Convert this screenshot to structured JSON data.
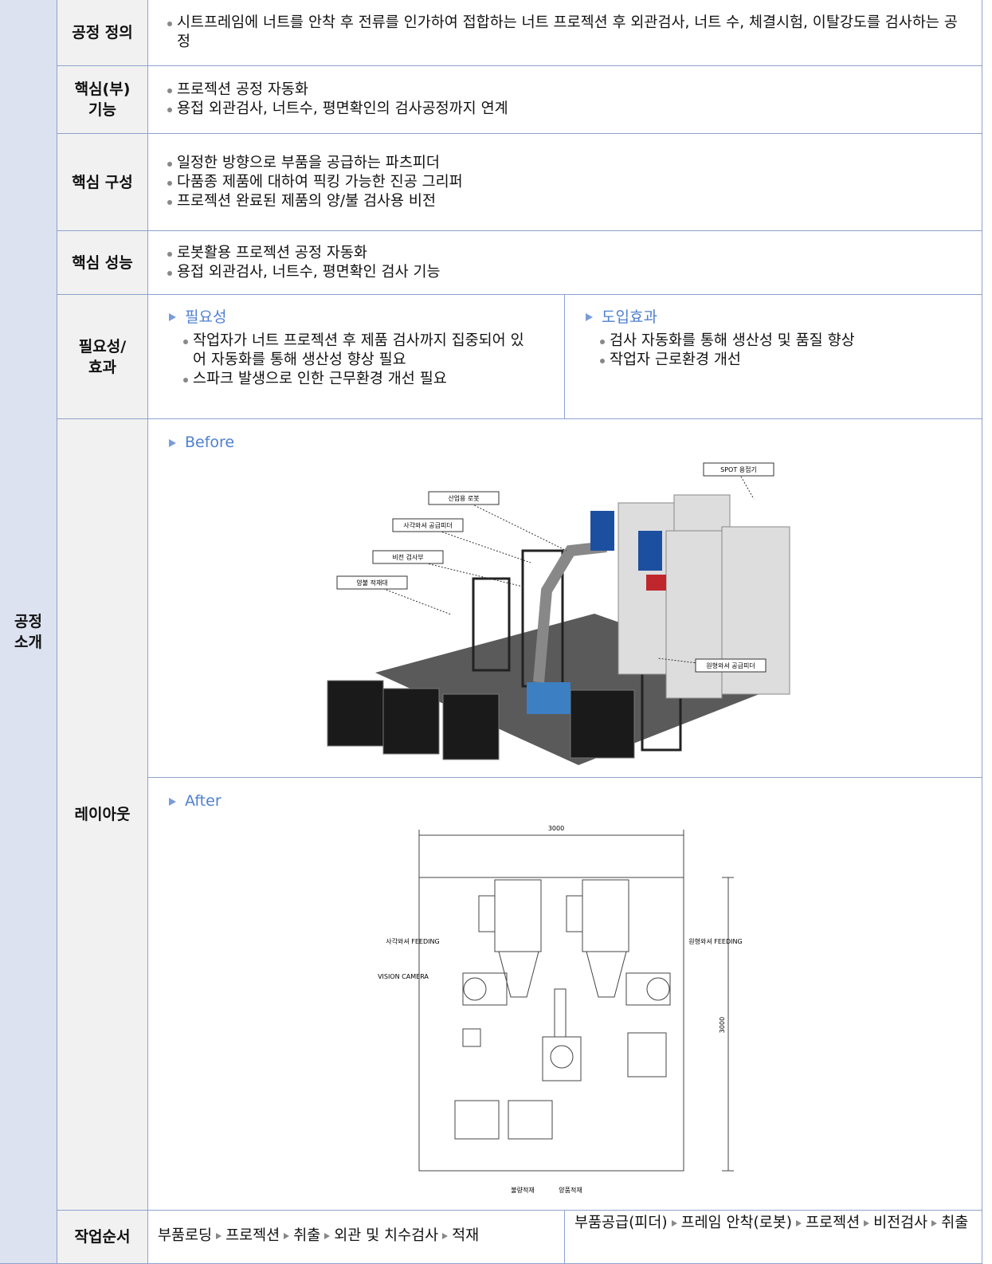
{
  "section": [
    "공정",
    "소개"
  ],
  "rows": [
    {
      "label": [
        "공정 정의"
      ],
      "items": [
        "시트프레임에 너트를 안착 후 전류를 인가하여 접합하는 너트 프로젝션 후 외관검사, 너트 수, 체결시험, 이탈강도를 검사하는 공정"
      ]
    },
    {
      "label": [
        "핵심(부)",
        "기능"
      ],
      "items": [
        "프로젝션 공정 자동화",
        "용접 외관검사, 너트수, 평면확인의 검사공정까지 연계"
      ]
    },
    {
      "label": [
        "핵심 구성"
      ],
      "items": [
        "일정한 방향으로 부품을 공급하는 파츠피더",
        "다품종 제품에 대하여 픽킹 가능한 진공 그리퍼",
        "프로젝션 완료된 제품의 양/불 검사용 비전"
      ]
    },
    {
      "label": [
        "핵심 성능"
      ],
      "items": [
        "로봇활용 프로젝션 공정 자동화",
        "용접 외관검사, 너트수, 평면확인 검사 기능"
      ]
    }
  ],
  "effect": {
    "label": [
      "필요성/",
      "효과"
    ],
    "need": {
      "heading": "필요성",
      "items": [
        "작업자가 너트 프로젝션 후 제품 검사까지 집중되어 있어 자동화를 통해 생산성 향상 필요",
        "스파크 발생으로 인한 근무환경 개선 필요"
      ]
    },
    "benefit": {
      "heading": "도입효과",
      "items": [
        "검사 자동화를 통해 생산성 및 품질 향상",
        "작업자 근로환경 개선"
      ]
    }
  },
  "layout": {
    "label": "레이아웃",
    "before": {
      "heading": "Before",
      "callouts": [
        "SPOT 용접기",
        "산업용 로봇",
        "사각와셔 공급피더",
        "비전 검사부",
        "양불 적재대",
        "원형와셔 공급피더"
      ]
    },
    "after": {
      "heading": "After",
      "callouts": [
        "3000",
        "사각와셔 FEEDING",
        "VISION CAMERA",
        "원형와셔 FEEDING",
        "3000",
        "불량적재",
        "양품적재"
      ]
    }
  },
  "sequence": {
    "label": "작업순서",
    "before": [
      "부품로딩",
      "프로젝션",
      "취출",
      "외관 및 치수검사",
      "적재"
    ],
    "after": [
      "부품공급(피더)",
      "프레임 안착(로봇)",
      "프로젝션",
      "비전검사",
      "취출"
    ]
  }
}
